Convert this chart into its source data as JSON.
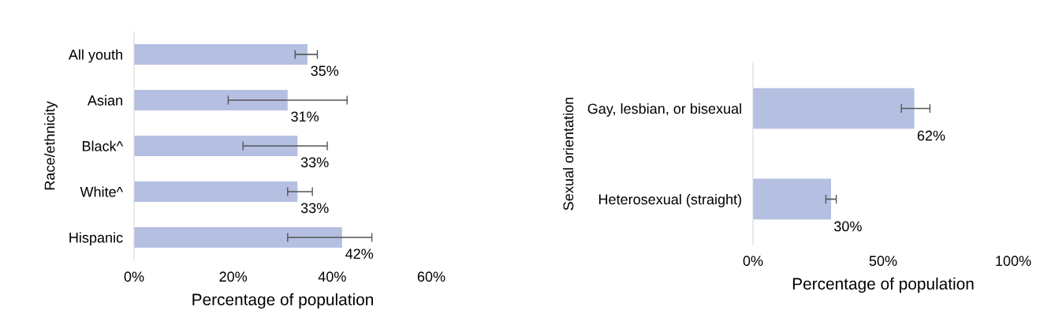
{
  "chart_data": [
    {
      "type": "bar",
      "orientation": "horizontal",
      "categories": [
        "All youth",
        "Asian",
        "Black^",
        "White^",
        "Hispanic"
      ],
      "values": [
        35,
        31,
        33,
        33,
        42
      ],
      "color": "#b4bfe2",
      "errors": [
        [
          32.5,
          37
        ],
        [
          19,
          43
        ],
        [
          22,
          39
        ],
        [
          31,
          36
        ],
        [
          31,
          48
        ]
      ],
      "value_labels": [
        "35%",
        "31%",
        "33%",
        "33%",
        "42%"
      ],
      "ylabel": "Race/ethnicity",
      "xlabel": "Percentage of population",
      "xlim": [
        0,
        60
      ],
      "xticks": [
        {
          "value": 0,
          "label": "0%"
        },
        {
          "value": 20,
          "label": "20%"
        },
        {
          "value": 40,
          "label": "40%"
        },
        {
          "value": 60,
          "label": "60%"
        }
      ],
      "grid": false,
      "legend": false
    },
    {
      "type": "bar",
      "orientation": "horizontal",
      "categories": [
        "Gay, lesbian, or bisexual",
        "Heterosexual (straight)"
      ],
      "values": [
        62,
        30
      ],
      "color": "#b4bfe2",
      "errors": [
        [
          57,
          68
        ],
        [
          28,
          32
        ]
      ],
      "value_labels": [
        "62%",
        "30%"
      ],
      "ylabel": "Sexual orientation",
      "xlabel": "Percentage of population",
      "xlim": [
        0,
        100
      ],
      "xticks": [
        {
          "value": 0,
          "label": "0%"
        },
        {
          "value": 50,
          "label": "50%"
        },
        {
          "value": 100,
          "label": "100%"
        }
      ],
      "grid": false,
      "legend": false
    }
  ]
}
